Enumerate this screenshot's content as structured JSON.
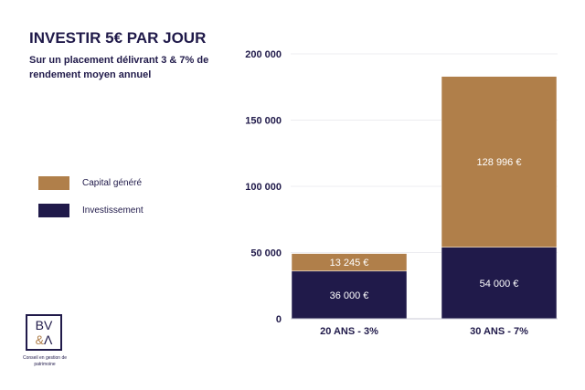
{
  "header": {
    "title": "INVESTIR 5€ PAR JOUR",
    "subtitle": "Sur un placement délivrant 3 & 7% de rendement moyen annuel"
  },
  "legend": [
    {
      "label": "Capital généré",
      "color": "#b07f4a"
    },
    {
      "label": "Investissement",
      "color": "#201a4a"
    }
  ],
  "logo": {
    "line1": "BV",
    "line2_amp": "&",
    "line2_rest": "Λ",
    "tagline": "Conseil en gestion de patrimoine"
  },
  "chart_data": {
    "type": "bar",
    "stacked": true,
    "categories": [
      "20 ANS - 3%",
      "30 ANS - 7%"
    ],
    "series": [
      {
        "name": "Investissement",
        "color": "#201a4a",
        "values": [
          36000,
          54000
        ],
        "labels": [
          "36 000 €",
          "54 000 €"
        ]
      },
      {
        "name": "Capital généré",
        "color": "#b07f4a",
        "values": [
          13245,
          128996
        ],
        "labels": [
          "13 245 €",
          "128 996 €"
        ]
      }
    ],
    "ylim": [
      0,
      200000
    ],
    "yticks": [
      0,
      50000,
      100000,
      150000,
      200000
    ],
    "ytick_labels": [
      "0",
      "50 000",
      "100 000",
      "150 000",
      "200 000"
    ],
    "grid": true,
    "legend_position": "left"
  }
}
